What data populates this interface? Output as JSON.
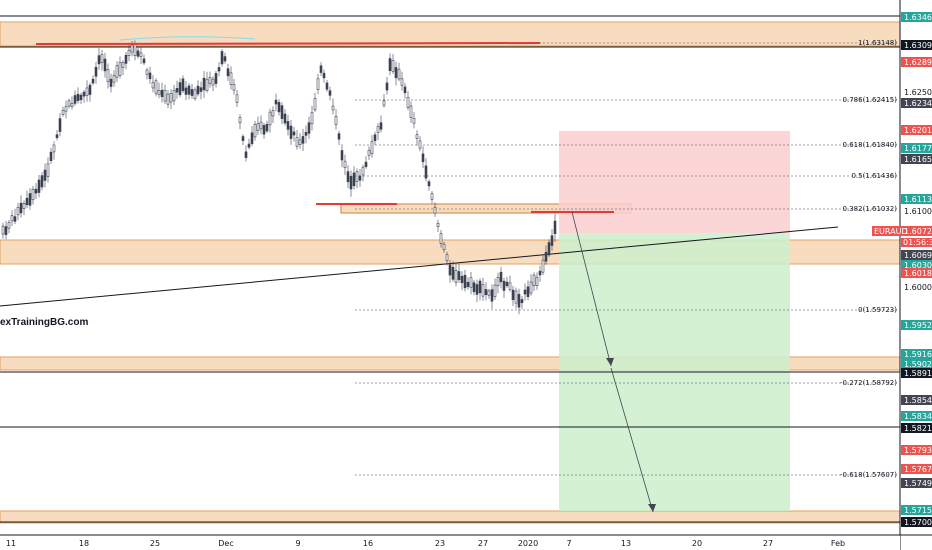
{
  "watermark": "exTrainingBG.com",
  "symbol_label": "EURAUD",
  "countdown": "01:56:32",
  "price_axis": {
    "plain_ticks": [
      "1.62500",
      "1.61000",
      "1.60000"
    ],
    "labels": [
      {
        "text": "1.63462",
        "bg": "#26a69a",
        "fg": "#ffffff"
      },
      {
        "text": "1.63094",
        "bg": "#131722",
        "fg": "#ffffff"
      },
      {
        "text": "1.62893",
        "bg": "#ef5350",
        "fg": "#ffffff"
      },
      {
        "text": "1.62342",
        "bg": "#434651",
        "fg": "#ffffff"
      },
      {
        "text": "1.62014",
        "bg": "#ef5350",
        "fg": "#ffffff"
      },
      {
        "text": "1.61773",
        "bg": "#26a69a",
        "fg": "#ffffff"
      },
      {
        "text": "1.61655",
        "bg": "#434651",
        "fg": "#ffffff"
      },
      {
        "text": "1.61135",
        "bg": "#26a69a",
        "fg": "#ffffff"
      },
      {
        "text": "1.60720",
        "bg": "#ef5350",
        "fg": "#ffffff"
      },
      {
        "text": "1.60698",
        "bg": "#434651",
        "fg": "#ffffff"
      },
      {
        "text": "1.60300",
        "bg": "#26a69a",
        "fg": "#ffffff"
      },
      {
        "text": "1.60189",
        "bg": "#ef5350",
        "fg": "#ffffff"
      },
      {
        "text": "1.59521",
        "bg": "#26a69a",
        "fg": "#ffffff"
      },
      {
        "text": "1.59163",
        "bg": "#26a69a",
        "fg": "#ffffff"
      },
      {
        "text": "1.59021",
        "bg": "#26a69a",
        "fg": "#ffffff"
      },
      {
        "text": "1.58917",
        "bg": "#131722",
        "fg": "#ffffff"
      },
      {
        "text": "1.58543",
        "bg": "#434651",
        "fg": "#ffffff"
      },
      {
        "text": "1.58341",
        "bg": "#26a69a",
        "fg": "#ffffff"
      },
      {
        "text": "1.58216",
        "bg": "#131722",
        "fg": "#ffffff"
      },
      {
        "text": "1.57938",
        "bg": "#ef5350",
        "fg": "#ffffff"
      },
      {
        "text": "1.57678",
        "bg": "#ef5350",
        "fg": "#ffffff"
      },
      {
        "text": "1.57490",
        "bg": "#434651",
        "fg": "#ffffff"
      },
      {
        "text": "1.57158",
        "bg": "#26a69a",
        "fg": "#ffffff"
      },
      {
        "text": "1.57000",
        "bg": "#131722",
        "fg": "#ffffff"
      }
    ]
  },
  "fib_levels": [
    {
      "label": "1(1.63148)"
    },
    {
      "label": "0.786(1.62415)"
    },
    {
      "label": "0.618(1.61840)"
    },
    {
      "label": "0.5(1.61436)"
    },
    {
      "label": "0.382(1.61032)"
    },
    {
      "label": "0(1.59723)"
    },
    {
      "label": "-0.272(1.58792)"
    },
    {
      "label": "-0.618(1.57607)"
    }
  ],
  "time_axis": [
    "11",
    "18",
    "25",
    "Dec",
    "9",
    "16",
    "23",
    "27",
    "2020",
    "7",
    "13",
    "20",
    "27",
    "Feb"
  ],
  "colors": {
    "zone_fill": "#f5d5b0",
    "zone_stroke": "#e0a060",
    "red_line": "#e53935",
    "stop_fill": "#f8c6c6",
    "target_fill": "#c8ebc4",
    "bull": "#26a69a",
    "bear": "#ef5350",
    "candle": "#3b4252"
  }
}
